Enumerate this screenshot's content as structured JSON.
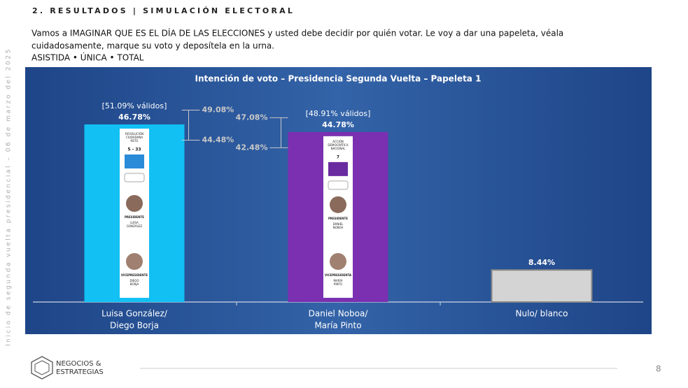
{
  "header": "2. RESULTADOS | SIMULACIÓN ELECTORAL",
  "intro": [
    "Vamos a IMAGINAR QUE ES EL DÍA DE LAS ELECCIONES y usted debe decidir por quién votar. Le voy a dar una papeleta, véala",
    "cuidadosamente, marque su voto y deposítela en la urna."
  ],
  "method": "ASISTIDA • ÚNICA • TOTAL",
  "sidebar": "Inicio de segunda vuelta presidencial – 06 de marzo del 2025",
  "logo": [
    "NEGOCIOS &",
    "ESTRATEGIAS"
  ],
  "page_number": "8",
  "chart_data": {
    "type": "bar",
    "title": "Intención de voto – Presidencia Segunda Vuelta – Papeleta 1",
    "categories": [
      [
        "Luisa González/",
        "Diego Borja"
      ],
      [
        "Daniel Noboa/",
        "María Pinto"
      ],
      [
        "Nulo/ blanco"
      ]
    ],
    "values": [
      46.78,
      44.78,
      8.44
    ],
    "value_labels": [
      "46.78%",
      "44.78%",
      "8.44%"
    ],
    "colors": [
      "#12c0f4",
      "#7a30b0",
      "#d4d4d4"
    ],
    "valid_labels": [
      "[51.09% válidos]",
      "[48.91% válidos]",
      null
    ],
    "upper": [
      49.08,
      47.08,
      null
    ],
    "upper_labels": [
      "49.08%",
      "47.08%",
      null
    ],
    "lower": [
      44.48,
      42.48,
      null
    ],
    "lower_labels": [
      "44.48%",
      "42.48%",
      null
    ],
    "ballots": [
      {
        "party": [
          "REVOLUCIÓN",
          "CIUDADANA",
          "RETO"
        ],
        "number": "5 - 33",
        "president": "PRESIDENTE",
        "president_name": [
          "LUISA",
          "GONZÁLEZ"
        ],
        "vice": "VICEPRESIDENTE",
        "vice_name": [
          "DIEGO",
          "BORJA"
        ]
      },
      {
        "party": [
          "ACCIÓN",
          "DEMOCRÁTICA",
          "NACIONAL"
        ],
        "number": "7",
        "president": "PRESIDENTE",
        "president_name": [
          "DANIEL",
          "NOBOA"
        ],
        "vice": "VICEPRESIDENTA",
        "vice_name": [
          "MARÍA",
          "PINTO"
        ]
      }
    ]
  }
}
